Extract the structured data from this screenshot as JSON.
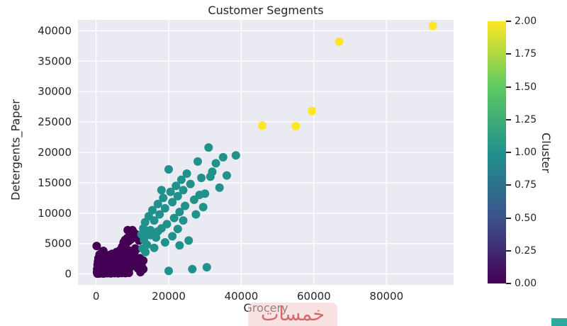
{
  "watermark": "خمسات",
  "colors": {
    "figure_bg": "#ffffff",
    "plot_bg": "#eaeaf2",
    "grid": "#ffffff",
    "text": "#262626",
    "cluster0": "#440154",
    "cluster1": "#21918c",
    "cluster2": "#fde725"
  },
  "chart_data": {
    "type": "scatter",
    "title": "Customer Segments",
    "xlabel": "Grocery",
    "ylabel": "Detergents_Paper",
    "xlim": [
      -5000,
      98500
    ],
    "ylim": [
      -1800,
      41800
    ],
    "xticks": [
      0,
      20000,
      40000,
      60000,
      80000
    ],
    "yticks": [
      0,
      5000,
      10000,
      15000,
      20000,
      25000,
      30000,
      35000,
      40000
    ],
    "grid": true,
    "legend_position": "colorbar-right",
    "marker_radius": 6,
    "colorbar": {
      "label": "Cluster",
      "vmin": 0,
      "vmax": 2,
      "tick_values": [
        0,
        0.25,
        0.5,
        0.75,
        1.0,
        1.25,
        1.5,
        1.75,
        2.0
      ],
      "tick_labels": [
        "0.00",
        "0.25",
        "0.50",
        "0.75",
        "1.00",
        "1.25",
        "1.50",
        "1.75",
        "2.00"
      ],
      "colormap": "viridis",
      "gradient_stops": [
        "#440154",
        "#3b528b",
        "#21918c",
        "#5ec962",
        "#fde725"
      ]
    },
    "series": [
      {
        "name": "cluster-0",
        "cluster": 0,
        "color": "#440154",
        "points": [
          [
            1500,
            200
          ],
          [
            2200,
            400
          ],
          [
            900,
            150
          ],
          [
            3000,
            600
          ],
          [
            2500,
            300
          ],
          [
            1200,
            500
          ],
          [
            4000,
            800
          ],
          [
            3500,
            450
          ],
          [
            5000,
            900
          ],
          [
            4500,
            700
          ],
          [
            600,
            100
          ],
          [
            1800,
            250
          ],
          [
            2800,
            550
          ],
          [
            3200,
            350
          ],
          [
            5500,
            1100
          ],
          [
            6000,
            1300
          ],
          [
            4800,
            950
          ],
          [
            2000,
            150
          ],
          [
            1000,
            300
          ],
          [
            700,
            450
          ],
          [
            3800,
            620
          ],
          [
            4200,
            780
          ],
          [
            5200,
            1000
          ],
          [
            6500,
            1500
          ],
          [
            7000,
            1800
          ],
          [
            6200,
            1200
          ],
          [
            5800,
            800
          ],
          [
            2600,
            700
          ],
          [
            3400,
            900
          ],
          [
            4600,
            1100
          ],
          [
            1600,
            600
          ],
          [
            2400,
            850
          ],
          [
            900,
            700
          ],
          [
            1300,
            950
          ],
          [
            2100,
            1100
          ],
          [
            3100,
            1300
          ],
          [
            4100,
            1500
          ],
          [
            5100,
            1700
          ],
          [
            6100,
            1900
          ],
          [
            7100,
            2100
          ],
          [
            800,
            1200
          ],
          [
            1700,
            1400
          ],
          [
            2700,
            1600
          ],
          [
            3700,
            1800
          ],
          [
            4700,
            2000
          ],
          [
            5700,
            2200
          ],
          [
            6700,
            2400
          ],
          [
            7700,
            2600
          ],
          [
            1100,
            1800
          ],
          [
            2300,
            2000
          ],
          [
            3300,
            2200
          ],
          [
            4300,
            2400
          ],
          [
            5300,
            2600
          ],
          [
            6300,
            2800
          ],
          [
            7300,
            3000
          ],
          [
            8300,
            3200
          ],
          [
            1900,
            2500
          ],
          [
            2900,
            2700
          ],
          [
            3900,
            2900
          ],
          [
            4900,
            3100
          ],
          [
            5900,
            3300
          ],
          [
            6900,
            3500
          ],
          [
            7900,
            3700
          ],
          [
            8900,
            3900
          ],
          [
            500,
            2000
          ],
          [
            1400,
            2300
          ],
          [
            8000,
            1000
          ],
          [
            8500,
            1500
          ],
          [
            9000,
            2000
          ],
          [
            9500,
            2500
          ],
          [
            10000,
            3000
          ],
          [
            10500,
            3500
          ],
          [
            11000,
            4000
          ],
          [
            8200,
            600
          ],
          [
            9200,
            900
          ],
          [
            10200,
            1400
          ],
          [
            11200,
            2000
          ],
          [
            12000,
            2600
          ],
          [
            7500,
            400
          ],
          [
            8800,
            2800
          ],
          [
            9800,
            3600
          ],
          [
            10800,
            4200
          ],
          [
            7200,
            4500
          ],
          [
            7800,
            4800
          ],
          [
            8400,
            5100
          ],
          [
            9000,
            5400
          ],
          [
            9600,
            5700
          ],
          [
            10200,
            6000
          ],
          [
            10800,
            6300
          ],
          [
            8000,
            5600
          ],
          [
            8600,
            5900
          ],
          [
            9200,
            6200
          ],
          [
            9800,
            6500
          ],
          [
            10400,
            6800
          ],
          [
            9400,
            7000
          ],
          [
            8700,
            7200
          ],
          [
            7600,
            5200
          ],
          [
            7000,
            4200
          ],
          [
            6400,
            3800
          ],
          [
            5600,
            3600
          ],
          [
            4400,
            3300
          ],
          [
            3600,
            3100
          ],
          [
            150,
            4600
          ],
          [
            1600,
            3500
          ],
          [
            2000,
            3800
          ],
          [
            1200,
            2900
          ],
          [
            12500,
            1500
          ],
          [
            13000,
            800
          ],
          [
            11500,
            900
          ],
          [
            12200,
            300
          ],
          [
            300,
            800
          ],
          [
            400,
            1500
          ],
          [
            250,
            300
          ],
          [
            650,
            2600
          ],
          [
            950,
            3200
          ],
          [
            13000,
            2200
          ],
          [
            11800,
            5500
          ],
          [
            11000,
            6500
          ],
          [
            10000,
            7200
          ],
          [
            350,
            50
          ],
          [
            1050,
            80
          ],
          [
            2050,
            60
          ],
          [
            3050,
            120
          ],
          [
            4050,
            90
          ],
          [
            5050,
            140
          ],
          [
            6050,
            110
          ],
          [
            7050,
            160
          ],
          [
            8050,
            130
          ],
          [
            9050,
            180
          ]
        ]
      },
      {
        "name": "cluster-1",
        "cluster": 1,
        "color": "#21918c",
        "points": [
          [
            12500,
            6500
          ],
          [
            13000,
            7500
          ],
          [
            13500,
            8500
          ],
          [
            14000,
            6800
          ],
          [
            14500,
            9500
          ],
          [
            15000,
            7200
          ],
          [
            15500,
            10500
          ],
          [
            16000,
            8800
          ],
          [
            16500,
            6000
          ],
          [
            17000,
            11500
          ],
          [
            17500,
            9800
          ],
          [
            18000,
            7500
          ],
          [
            18500,
            12500
          ],
          [
            19000,
            10800
          ],
          [
            19500,
            8200
          ],
          [
            20000,
            17200
          ],
          [
            20500,
            13500
          ],
          [
            21000,
            11800
          ],
          [
            21500,
            9200
          ],
          [
            22000,
            14500
          ],
          [
            22500,
            12800
          ],
          [
            23000,
            10200
          ],
          [
            23500,
            15500
          ],
          [
            24000,
            13800
          ],
          [
            24500,
            11200
          ],
          [
            25000,
            16500
          ],
          [
            26000,
            14800
          ],
          [
            27000,
            12200
          ],
          [
            28000,
            18500
          ],
          [
            29000,
            15800
          ],
          [
            30000,
            13200
          ],
          [
            31000,
            20800
          ],
          [
            32000,
            16800
          ],
          [
            33000,
            18200
          ],
          [
            34000,
            14200
          ],
          [
            35000,
            19200
          ],
          [
            36000,
            16200
          ],
          [
            38500,
            19500
          ],
          [
            20000,
            500
          ],
          [
            26500,
            800
          ],
          [
            30500,
            1100
          ],
          [
            23000,
            4700
          ],
          [
            25500,
            5500
          ],
          [
            21000,
            6200
          ],
          [
            19000,
            5200
          ],
          [
            16000,
            4300
          ],
          [
            14000,
            4800
          ],
          [
            13200,
            5600
          ],
          [
            15000,
            6400
          ],
          [
            24000,
            8800
          ],
          [
            27500,
            9800
          ],
          [
            29500,
            11000
          ],
          [
            22500,
            7400
          ],
          [
            18000,
            13800
          ],
          [
            17000,
            7000
          ],
          [
            31500,
            16000
          ],
          [
            28500,
            13000
          ],
          [
            12800,
            4200
          ],
          [
            13600,
            3600
          ]
        ]
      },
      {
        "name": "cluster-2",
        "cluster": 2,
        "color": "#fde725",
        "points": [
          [
            45800,
            24400
          ],
          [
            55000,
            24300
          ],
          [
            59500,
            26800
          ],
          [
            67000,
            38200
          ],
          [
            92780,
            40800
          ]
        ]
      }
    ]
  }
}
